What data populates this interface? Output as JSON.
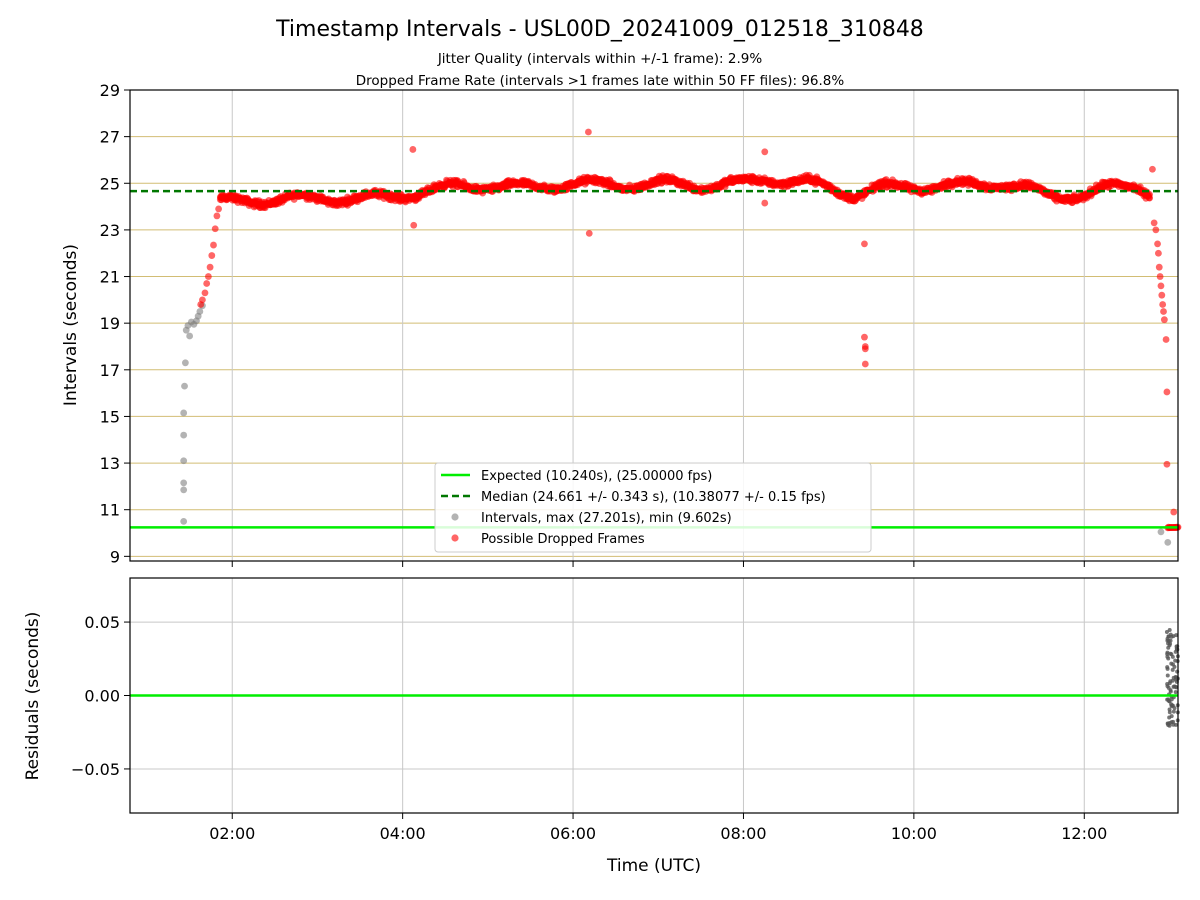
{
  "header": {
    "title": "Timestamp Intervals - USL00D_20241009_012518_310848",
    "subtitle_1": "Jitter Quality (intervals within +/-1 frame): 2.9%",
    "subtitle_2": "Dropped Frame Rate (intervals >1 frames late within 50 FF files): 96.8%"
  },
  "colors": {
    "expected": "#00ee00",
    "median": "#007700",
    "intervals": "#808080",
    "dropped": "#ff0000",
    "hgrid": "#d2bd74",
    "vgrid": "#c8c8c8"
  },
  "chart_data": [
    {
      "type": "scatter",
      "ylabel": "Intervals (seconds)",
      "ylim": [
        8.8,
        29
      ],
      "y_ticks": [
        "9",
        "11",
        "13",
        "15",
        "17",
        "19",
        "21",
        "23",
        "25",
        "27",
        "29"
      ],
      "xlim_hours": [
        0.8,
        13.1
      ],
      "x_ticks": [
        "02:00",
        "04:00",
        "06:00",
        "08:00",
        "10:00",
        "12:00"
      ],
      "grid": true,
      "legend_placement": "lower-center",
      "legend": [
        "Expected (10.240s), (25.00000 fps)",
        "Median (24.661 +/- 0.343 s), (10.38077 +/- 0.15 fps)",
        "Intervals, max (27.201s), min (9.602s)",
        "Possible Dropped Frames"
      ],
      "expected_line": 10.24,
      "median_line": 24.661,
      "series": [
        {
          "name": "Intervals, max (27.201s), min (9.602s)",
          "points": [
            [
              1.43,
              10.5
            ],
            [
              1.43,
              11.85
            ],
            [
              1.43,
              12.15
            ],
            [
              1.43,
              13.1
            ],
            [
              1.43,
              14.2
            ],
            [
              1.43,
              15.15
            ],
            [
              1.44,
              16.3
            ],
            [
              1.45,
              17.3
            ],
            [
              1.46,
              18.7
            ],
            [
              1.48,
              18.9
            ],
            [
              1.5,
              18.45
            ],
            [
              1.52,
              19.05
            ],
            [
              1.55,
              18.95
            ],
            [
              1.58,
              19.1
            ],
            [
              1.6,
              19.3
            ],
            [
              1.62,
              19.5
            ],
            [
              1.65,
              19.75
            ],
            [
              12.9,
              10.05
            ],
            [
              12.98,
              9.6
            ]
          ]
        },
        {
          "name": "Possible Dropped Frames",
          "points": [
            [
              1.63,
              19.8
            ],
            [
              1.65,
              20.0
            ],
            [
              1.68,
              20.3
            ],
            [
              1.7,
              20.7
            ],
            [
              1.72,
              21.0
            ],
            [
              1.74,
              21.4
            ],
            [
              1.76,
              21.9
            ],
            [
              1.78,
              22.35
            ],
            [
              1.8,
              23.05
            ],
            [
              1.82,
              23.6
            ],
            [
              1.84,
              23.9
            ],
            [
              1.86,
              24.3
            ],
            [
              4.12,
              26.45
            ],
            [
              4.13,
              23.2
            ],
            [
              6.18,
              27.2
            ],
            [
              6.19,
              22.85
            ],
            [
              8.25,
              26.35
            ],
            [
              8.25,
              24.15
            ],
            [
              9.42,
              22.4
            ],
            [
              9.42,
              18.4
            ],
            [
              9.43,
              18.0
            ],
            [
              9.43,
              17.9
            ],
            [
              9.43,
              17.25
            ],
            [
              12.8,
              25.6
            ],
            [
              12.82,
              23.3
            ],
            [
              12.84,
              23.0
            ],
            [
              12.86,
              22.4
            ],
            [
              12.87,
              22.0
            ],
            [
              12.88,
              21.4
            ],
            [
              12.89,
              21.0
            ],
            [
              12.9,
              20.6
            ],
            [
              12.91,
              20.2
            ],
            [
              12.92,
              19.8
            ],
            [
              12.93,
              19.5
            ],
            [
              12.94,
              19.15
            ],
            [
              12.96,
              18.3
            ],
            [
              12.97,
              16.05
            ],
            [
              12.97,
              12.95
            ],
            [
              13.05,
              10.9
            ]
          ],
          "trend": [
            [
              1.86,
              24.2
            ],
            [
              2.5,
              24.3
            ],
            [
              3.0,
              24.35
            ],
            [
              3.5,
              24.35
            ],
            [
              3.8,
              24.4
            ],
            [
              4.2,
              24.6
            ],
            [
              4.6,
              24.85
            ],
            [
              5.0,
              24.9
            ],
            [
              5.5,
              24.8
            ],
            [
              6.0,
              25.0
            ],
            [
              6.3,
              24.95
            ],
            [
              6.6,
              24.9
            ],
            [
              7.0,
              25.0
            ],
            [
              7.5,
              24.9
            ],
            [
              8.0,
              25.0
            ],
            [
              8.3,
              25.2
            ],
            [
              8.8,
              25.0
            ],
            [
              9.3,
              24.5
            ],
            [
              9.6,
              24.8
            ],
            [
              10.0,
              24.85
            ],
            [
              10.5,
              24.9
            ],
            [
              11.0,
              25.0
            ],
            [
              11.3,
              24.8
            ],
            [
              11.6,
              24.45
            ],
            [
              12.0,
              24.5
            ],
            [
              12.3,
              24.8
            ],
            [
              12.6,
              24.95
            ],
            [
              12.78,
              24.6
            ]
          ],
          "cluster_at_expected": [
            [
              12.98,
              10.24
            ],
            [
              13.1,
              10.24
            ]
          ]
        }
      ]
    },
    {
      "type": "scatter",
      "xlabel": "Time (UTC)",
      "ylabel": "Residuals (seconds)",
      "ylim": [
        -0.08,
        0.08
      ],
      "y_ticks": [
        "0.05",
        "0.00",
        "−0.05"
      ],
      "xlim_hours": [
        0.8,
        13.1
      ],
      "x_ticks": [
        "02:00",
        "04:00",
        "06:00",
        "08:00",
        "10:00",
        "12:00"
      ],
      "grid": true,
      "expected_line": 0,
      "residual_range": [
        -0.021,
        0.045
      ],
      "residual_x_range_hours": [
        12.97,
        13.1
      ]
    }
  ]
}
